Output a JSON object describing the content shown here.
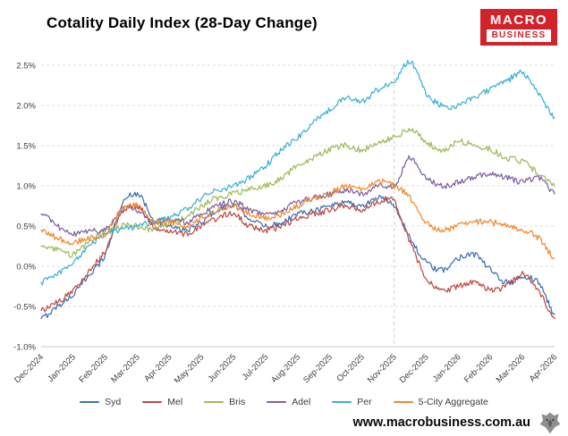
{
  "logo": {
    "top": "MACRO",
    "bottom": "BUSINESS"
  },
  "footer": {
    "website": "www.macrobusiness.com.au"
  },
  "chart_data": {
    "type": "line",
    "title": "Cotality Daily Index (28-Day Change)",
    "xlabel": "",
    "ylabel": "",
    "ylim": [
      -1.0,
      2.5
    ],
    "grid": "horizontal-dashed",
    "legend_position": "bottom",
    "x_resolution": "semi-monthly (2 points per month tick)",
    "x_ticks": [
      "Dec-2024",
      "Jan-2025",
      "Feb-2025",
      "Mar-2025",
      "Apr-2025",
      "May-2025",
      "Jun-2025",
      "Jul-2025",
      "Aug-2025",
      "Sep-2025",
      "Oct-2025",
      "Nov-2025",
      "Dec-2025",
      "Jan-2026",
      "Feb-2026",
      "Mar-2026",
      "Apr-2026"
    ],
    "y_tick_labels": [
      "-1.0%",
      "-0.5%",
      "0.0%",
      "0.5%",
      "1.0%",
      "1.5%",
      "2.0%",
      "2.5%"
    ],
    "vline_tick": "Nov-2025",
    "series": [
      {
        "name": "Syd",
        "color": "#3F6FB5",
        "values": [
          -0.65,
          -0.5,
          -0.35,
          -0.1,
          0.15,
          0.75,
          0.9,
          0.6,
          0.5,
          0.45,
          0.55,
          0.7,
          0.75,
          0.6,
          0.5,
          0.55,
          0.65,
          0.7,
          0.75,
          0.8,
          0.75,
          0.85,
          0.75,
          0.35,
          0.05,
          -0.05,
          0.1,
          0.15,
          -0.05,
          -0.2,
          -0.15,
          -0.2,
          -0.6
        ]
      },
      {
        "name": "Mel",
        "color": "#BF4B44",
        "values": [
          -0.55,
          -0.45,
          -0.3,
          -0.05,
          0.2,
          0.65,
          0.75,
          0.5,
          0.45,
          0.4,
          0.5,
          0.6,
          0.65,
          0.5,
          0.45,
          0.5,
          0.6,
          0.65,
          0.7,
          0.75,
          0.7,
          0.8,
          0.8,
          0.3,
          -0.15,
          -0.3,
          -0.25,
          -0.2,
          -0.3,
          -0.25,
          -0.1,
          -0.3,
          -0.65
        ]
      },
      {
        "name": "Bris",
        "color": "#9FBB58",
        "values": [
          0.25,
          0.2,
          0.15,
          0.3,
          0.45,
          0.5,
          0.5,
          0.45,
          0.55,
          0.6,
          0.75,
          0.85,
          0.9,
          0.95,
          1.0,
          1.1,
          1.25,
          1.35,
          1.45,
          1.5,
          1.45,
          1.55,
          1.6,
          1.7,
          1.55,
          1.45,
          1.55,
          1.5,
          1.45,
          1.35,
          1.3,
          1.15,
          1.0
        ]
      },
      {
        "name": "Adel",
        "color": "#7D62A3",
        "values": [
          0.65,
          0.5,
          0.4,
          0.45,
          0.45,
          0.7,
          0.7,
          0.55,
          0.6,
          0.55,
          0.65,
          0.75,
          0.8,
          0.7,
          0.65,
          0.7,
          0.8,
          0.85,
          0.9,
          0.95,
          0.9,
          1.0,
          1.0,
          1.35,
          1.1,
          1.0,
          1.05,
          1.1,
          1.15,
          1.1,
          1.05,
          1.1,
          0.9
        ]
      },
      {
        "name": "Per",
        "color": "#3BB2D4",
        "values": [
          -0.2,
          -0.1,
          0.05,
          0.25,
          0.4,
          0.45,
          0.5,
          0.55,
          0.6,
          0.7,
          0.85,
          0.95,
          1.0,
          1.1,
          1.25,
          1.45,
          1.6,
          1.8,
          1.95,
          2.1,
          2.05,
          2.2,
          2.3,
          2.55,
          2.15,
          2.0,
          2.0,
          2.1,
          2.2,
          2.3,
          2.4,
          2.15,
          1.85
        ]
      },
      {
        "name": "5-City Aggregate",
        "color": "#F6862B",
        "values": [
          0.45,
          0.35,
          0.3,
          0.35,
          0.4,
          0.7,
          0.75,
          0.55,
          0.55,
          0.5,
          0.6,
          0.7,
          0.75,
          0.65,
          0.6,
          0.65,
          0.75,
          0.85,
          0.9,
          1.0,
          0.95,
          1.05,
          1.0,
          0.85,
          0.55,
          0.45,
          0.5,
          0.55,
          0.55,
          0.5,
          0.45,
          0.35,
          0.1
        ]
      }
    ]
  }
}
